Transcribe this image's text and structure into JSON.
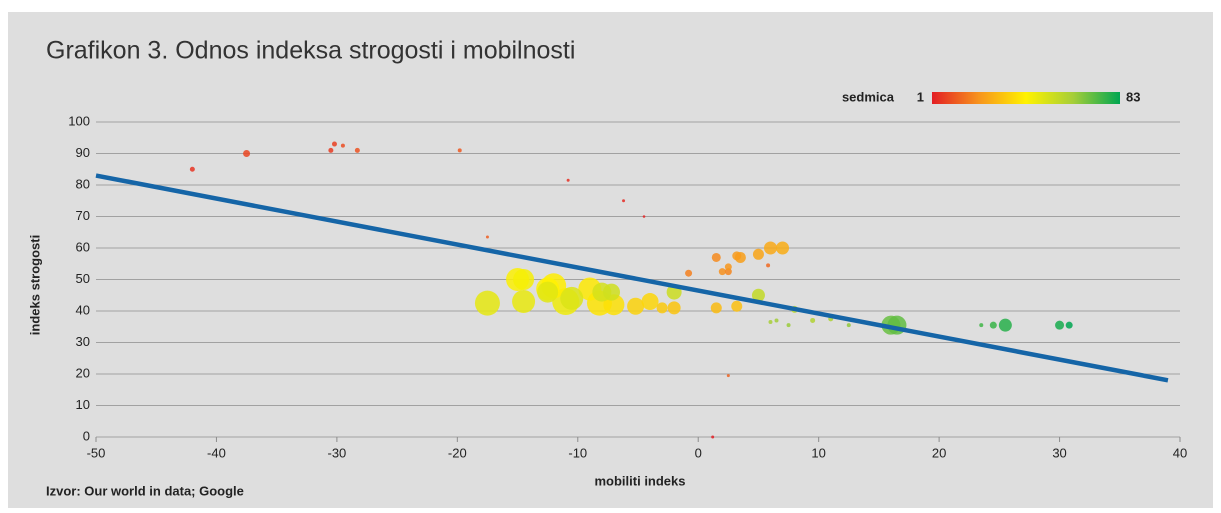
{
  "chart_data": {
    "type": "scatter",
    "title": "Grafikon 3. Odnos indeksa strogosti i mobilnosti",
    "x_label": "mobiliti indeks",
    "y_label": "indeks strogosti",
    "source": "Izvor: Our world in data; Google",
    "color_label": "sedmica",
    "color_range": [
      1,
      83
    ],
    "colorscale": [
      "#e31e24",
      "#f7941d",
      "#fff200",
      "#a6ce39",
      "#00a651"
    ],
    "xlim": [
      -50,
      40
    ],
    "xticks": [
      -50,
      -40,
      -30,
      -20,
      -10,
      0,
      10,
      20,
      30,
      40
    ],
    "ylim": [
      0,
      100
    ],
    "yticks": [
      0,
      10,
      20,
      30,
      40,
      50,
      60,
      70,
      80,
      90,
      100
    ],
    "grid": true,
    "trendline": {
      "color": "#1565a7",
      "x": [
        -50,
        39
      ],
      "y": [
        83,
        18
      ]
    },
    "x": [
      -42,
      -37.5,
      -30.5,
      -30.2,
      -29.5,
      -28.3,
      -19.8,
      -17.5,
      -10.8,
      -6.2,
      -4.5,
      1.2,
      2.5,
      5.8,
      -0.8,
      1.5,
      2,
      2.5,
      2.5,
      3.2,
      3.5,
      5,
      6,
      7,
      1.5,
      3.2,
      -2,
      -3,
      -5.2,
      -4,
      -7,
      -8.2,
      -9,
      -12,
      -12.5,
      -15,
      -14.5,
      -11,
      -14.5,
      -17.5,
      -12.5,
      -10.5,
      -8,
      -7.2,
      -2,
      5,
      9.5,
      11,
      8,
      6,
      6.5,
      7.5,
      12.5,
      16,
      16.5,
      23.5,
      24.5,
      25.5,
      30,
      30.8
    ],
    "y": [
      85,
      90,
      91,
      93,
      92.5,
      91,
      91,
      63.5,
      81.5,
      75,
      70,
      0,
      19.5,
      54.5,
      52,
      57,
      52.5,
      52.5,
      54,
      57.5,
      57,
      58,
      60,
      60,
      41,
      41.5,
      41,
      41,
      41.5,
      43,
      42,
      42.5,
      47,
      48,
      47,
      50,
      50,
      43,
      43,
      42.5,
      46,
      44,
      46,
      46,
      46,
      45,
      37,
      37.5,
      40.5,
      36.5,
      37,
      35.5,
      35.5,
      35.5,
      35.5,
      35.5,
      35.5,
      35.5,
      35.5,
      35.5
    ],
    "size": [
      2,
      3,
      2,
      2,
      1.5,
      2,
      1.5,
      1,
      1,
      1,
      0.8,
      1,
      1,
      1.5,
      3,
      4,
      3,
      3,
      3,
      4,
      5,
      5,
      6,
      6,
      5,
      5,
      6,
      5,
      8,
      8,
      10,
      12,
      11,
      12,
      11,
      11,
      10,
      13,
      11,
      12,
      10,
      11,
      9,
      8,
      7,
      6,
      2,
      2,
      3,
      1.5,
      1.5,
      1.5,
      1.5,
      9,
      9,
      1.5,
      3,
      6,
      4,
      3
    ],
    "week": [
      5,
      8,
      6,
      7,
      9,
      10,
      11,
      12,
      4,
      3,
      2,
      1,
      13,
      14,
      18,
      20,
      21,
      19,
      22,
      23,
      24,
      25,
      26,
      27,
      30,
      31,
      32,
      33,
      35,
      36,
      38,
      39,
      40,
      41,
      42,
      43,
      44,
      46,
      47,
      48,
      49,
      50,
      52,
      53,
      54,
      56,
      60,
      61,
      58,
      62,
      63,
      64,
      65,
      70,
      71,
      75,
      76,
      78,
      80,
      83
    ]
  }
}
